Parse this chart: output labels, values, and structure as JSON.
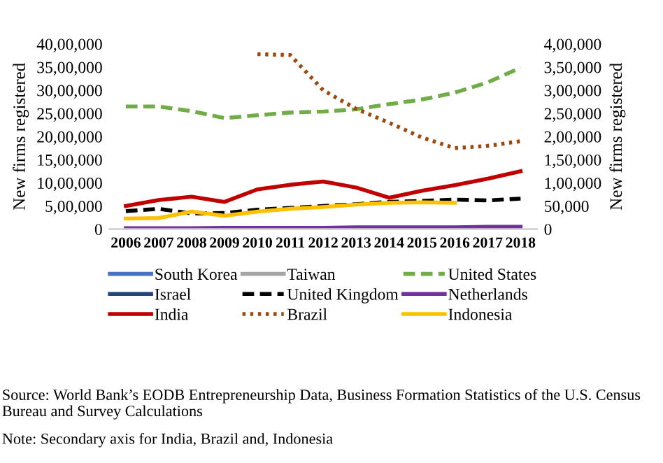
{
  "chart_data": {
    "type": "line",
    "categories": [
      "2006",
      "2007",
      "2008",
      "2009",
      "2010",
      "2011",
      "2012",
      "2013",
      "2014",
      "2015",
      "2016",
      "2017",
      "2018"
    ],
    "ylabel": "New firms registered",
    "y2label": "New firms registered",
    "ylim": [
      0,
      4000000
    ],
    "yticks": [
      {
        "value": 0,
        "label": "0"
      },
      {
        "value": 500000,
        "label": "5,00,000"
      },
      {
        "value": 1000000,
        "label": "10,00,000"
      },
      {
        "value": 1500000,
        "label": "15,00,000"
      },
      {
        "value": 2000000,
        "label": "20,00,000"
      },
      {
        "value": 2500000,
        "label": "25,00,000"
      },
      {
        "value": 3000000,
        "label": "30,00,000"
      },
      {
        "value": 3500000,
        "label": "35,00,000"
      },
      {
        "value": 4000000,
        "label": "40,00,000"
      }
    ],
    "y2lim": [
      0,
      400000
    ],
    "y2ticks": [
      {
        "value": 0,
        "label": "0"
      },
      {
        "value": 50000,
        "label": "50,000"
      },
      {
        "value": 100000,
        "label": "1,00,000"
      },
      {
        "value": 150000,
        "label": "1,50,000"
      },
      {
        "value": 200000,
        "label": "2,00,000"
      },
      {
        "value": 250000,
        "label": "2,50,000"
      },
      {
        "value": 300000,
        "label": "3,00,000"
      },
      {
        "value": 350000,
        "label": "3,50,000"
      },
      {
        "value": 400000,
        "label": "4,00,000"
      }
    ],
    "grid": false,
    "legend": "bottom",
    "series": [
      {
        "name": "South Korea",
        "color": "#4472c4",
        "line_style": "solid",
        "values": [
          null,
          null,
          null,
          null,
          null,
          null,
          null,
          null,
          null,
          null,
          null,
          null,
          null
        ]
      },
      {
        "name": "Taiwan",
        "color": "#a5a5a5",
        "line_style": "solid",
        "values": [
          null,
          null,
          null,
          null,
          null,
          null,
          null,
          null,
          null,
          null,
          null,
          null,
          null
        ]
      },
      {
        "name": "United States",
        "color": "#70ad47",
        "line_style": "dashed",
        "values": [
          2650000,
          2650000,
          2550000,
          2400000,
          2460000,
          2520000,
          2540000,
          2590000,
          2700000,
          2800000,
          2950000,
          3170000,
          3490000
        ]
      },
      {
        "name": "Israel",
        "color": "#264478",
        "line_style": "solid",
        "values": [
          null,
          null,
          null,
          null,
          null,
          null,
          null,
          null,
          null,
          null,
          null,
          null,
          null
        ]
      },
      {
        "name": "United Kingdom",
        "color": "#000000",
        "line_style": "dashed",
        "values": [
          390000,
          440000,
          340000,
          350000,
          420000,
          460000,
          500000,
          540000,
          590000,
          610000,
          640000,
          620000,
          660000
        ]
      },
      {
        "name": "Netherlands",
        "color": "#7030a0",
        "line_style": "solid",
        "values": [
          20000,
          20000,
          20000,
          30000,
          30000,
          30000,
          30000,
          40000,
          40000,
          40000,
          40000,
          50000,
          50000
        ]
      },
      {
        "name": "India",
        "color": "#c00000",
        "line_style": "solid",
        "axis": "y2",
        "values": [
          50000,
          63000,
          70000,
          59000,
          86000,
          96000,
          103000,
          90000,
          68000,
          83000,
          95000,
          109000,
          125000
        ]
      },
      {
        "name": "Brazil",
        "color": "#9e480e",
        "line_style": "dotted",
        "axis": "y2",
        "values": [
          null,
          null,
          null,
          null,
          378000,
          376000,
          300000,
          260000,
          230000,
          198000,
          175000,
          180000,
          190000
        ]
      },
      {
        "name": "Indonesia",
        "color": "#ffc000",
        "line_style": "solid",
        "axis": "y2",
        "values": [
          23000,
          24000,
          38000,
          29000,
          38000,
          44000,
          48000,
          53000,
          57000,
          58000,
          57000,
          null,
          null
        ]
      }
    ],
    "annotations": [
      "Source: World Bank’s EODB Entrepreneurship Data, Business Formation Statistics of the U.S. Census Bureau and Survey Calculations",
      "Note: Secondary axis for India, Brazil and, Indonesia"
    ]
  }
}
